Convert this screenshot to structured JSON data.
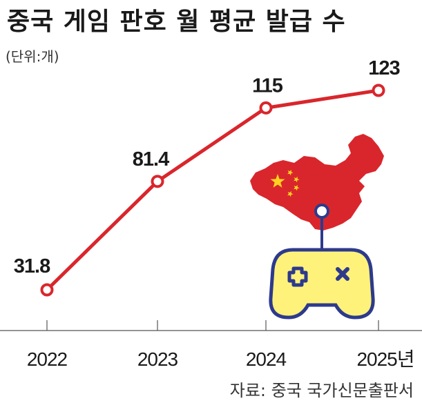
{
  "title": "중국 게임 판호 월 평균 발급 수",
  "unit_label": "(단위:개)",
  "source": "자료: 중국 국가신문출판서",
  "colors": {
    "line": "#d9262c",
    "marker_fill": "#ffffff",
    "map_red": "#d9262c",
    "star": "#ffd21f",
    "pad_fill": "#fff27a",
    "pad_stroke": "#2d3a8c"
  },
  "icons": [
    "china-map-flag-icon",
    "game-controller-icon"
  ],
  "chart_data": {
    "type": "line",
    "x": [
      "2022",
      "2023",
      "2024",
      "2025년"
    ],
    "values": [
      31.8,
      81.4,
      115,
      123
    ],
    "data_labels": [
      "31.8",
      "81.4",
      "115",
      "123"
    ],
    "title": "중국 게임 판호 월 평균 발급 수",
    "xlabel": "",
    "ylabel": "(단위:개)",
    "ylim": [
      20,
      130
    ],
    "grid": false,
    "legend": "none"
  }
}
